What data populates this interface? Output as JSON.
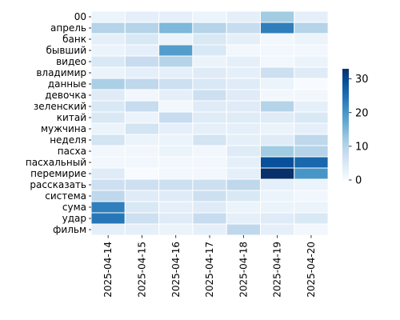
{
  "chart_data": {
    "type": "heatmap",
    "title": "",
    "xlabel": "",
    "ylabel": "",
    "x": [
      "2025-04-14",
      "2025-04-15",
      "2025-04-16",
      "2025-04-17",
      "2025-04-18",
      "2025-04-19",
      "2025-04-20"
    ],
    "y": [
      "00",
      "апрель",
      "банк",
      "бывший",
      "видео",
      "владимир",
      "данные",
      "девочка",
      "зеленский",
      "китай",
      "мужчина",
      "неделя",
      "пасха",
      "пасхальный",
      "перемирие",
      "рассказать",
      "система",
      "сума",
      "удар",
      "фильм"
    ],
    "values": [
      [
        2,
        3,
        3,
        2,
        3,
        12,
        3
      ],
      [
        10,
        10,
        15,
        10,
        8,
        23,
        10
      ],
      [
        3,
        5,
        2,
        5,
        3,
        1,
        2
      ],
      [
        2,
        3,
        19,
        5,
        1,
        1,
        1
      ],
      [
        5,
        8,
        10,
        2,
        3,
        1,
        2
      ],
      [
        2,
        3,
        3,
        4,
        3,
        7,
        4
      ],
      [
        11,
        9,
        7,
        5,
        4,
        2,
        0
      ],
      [
        4,
        1,
        3,
        7,
        4,
        1,
        1
      ],
      [
        5,
        8,
        1,
        4,
        4,
        10,
        3
      ],
      [
        5,
        2,
        8,
        4,
        4,
        4,
        5
      ],
      [
        2,
        6,
        3,
        3,
        3,
        2,
        3
      ],
      [
        6,
        2,
        2,
        6,
        3,
        4,
        9
      ],
      [
        1,
        1,
        2,
        1,
        4,
        12,
        10
      ],
      [
        1,
        1,
        1,
        1,
        3,
        29,
        26
      ],
      [
        4,
        0,
        1,
        1,
        3,
        33,
        20
      ],
      [
        7,
        7,
        7,
        7,
        9,
        3,
        2
      ],
      [
        9,
        4,
        4,
        7,
        5,
        2,
        1
      ],
      [
        23,
        5,
        3,
        4,
        2,
        2,
        2
      ],
      [
        24,
        7,
        4,
        8,
        3,
        4,
        5
      ],
      [
        3,
        3,
        2,
        3,
        9,
        3,
        1
      ]
    ],
    "colorbar": {
      "min": 0,
      "max": 33,
      "ticks": [
        0,
        10,
        20,
        30
      ]
    },
    "colormap": "Blues",
    "grid": true,
    "legend": "colorbar-right"
  }
}
